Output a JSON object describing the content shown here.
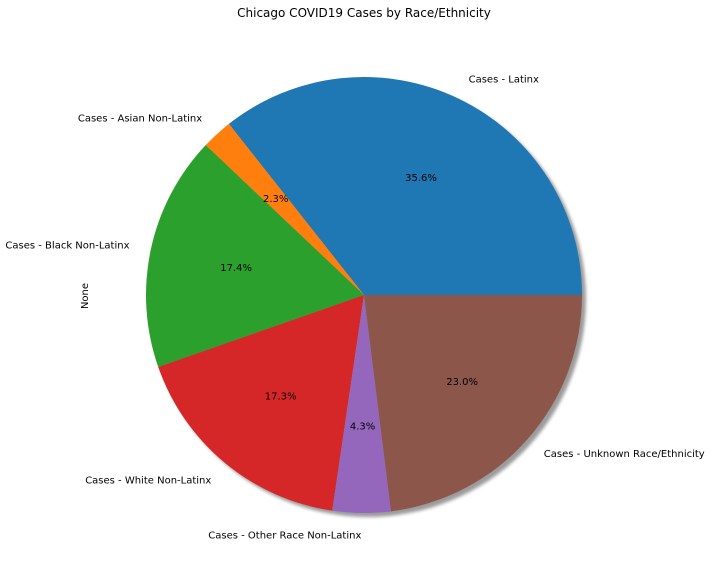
{
  "chart_data": {
    "type": "pie",
    "title": "Chicago COVID19 Cases by Race/Ethnicity",
    "ylabel": "None",
    "slices": [
      {
        "label": "Cases - Latinx",
        "percent": 35.6,
        "pct_label": "35.6%",
        "color": "#1f77b4"
      },
      {
        "label": "Cases - Asian Non-Latinx",
        "percent": 2.3,
        "pct_label": "2.3%",
        "color": "#ff7f0e"
      },
      {
        "label": "Cases - Black Non-Latinx",
        "percent": 17.4,
        "pct_label": "17.4%",
        "color": "#2ca02c"
      },
      {
        "label": "Cases - White Non-Latinx",
        "percent": 17.3,
        "pct_label": "17.3%",
        "color": "#d62728"
      },
      {
        "label": "Cases - Other Race Non-Latinx",
        "percent": 4.3,
        "pct_label": "4.3%",
        "color": "#9467bd"
      },
      {
        "label": "Cases - Unknown Race/Ethnicity",
        "percent": 23.0,
        "pct_label": "23.0%",
        "color": "#8c564b"
      }
    ],
    "start_angle": "0° (3 o'clock), counter-clockwise",
    "shadow": true
  }
}
